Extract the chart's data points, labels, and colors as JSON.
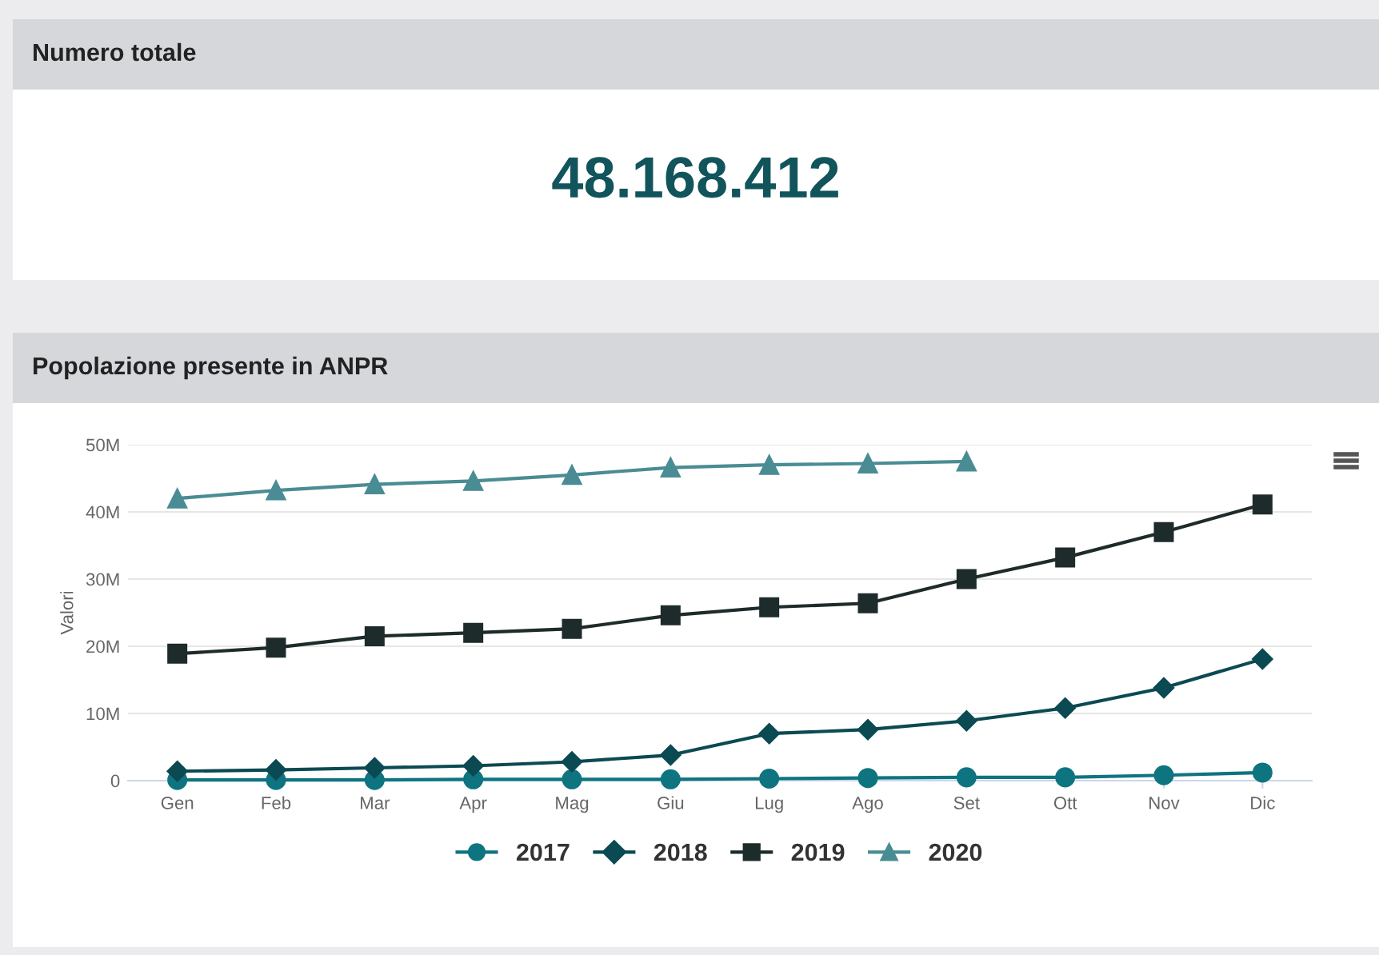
{
  "chart_data": [
    {
      "type": "other",
      "title": "Numero totale",
      "annotations": [
        "48.168.412"
      ]
    },
    {
      "type": "line",
      "title": "Popolazione presente in ANPR",
      "ylabel": "Valori",
      "categories": [
        "Gen",
        "Feb",
        "Mar",
        "Apr",
        "Mag",
        "Giu",
        "Lug",
        "Ago",
        "Set",
        "Ott",
        "Nov",
        "Dic"
      ],
      "ylim": [
        0,
        50
      ],
      "yticks": [
        0,
        {
          "value": 10,
          "label": "10M"
        },
        {
          "value": 20,
          "label": "20M"
        },
        {
          "value": 30,
          "label": "30M"
        },
        {
          "value": 40,
          "label": "40M"
        },
        {
          "value": 50,
          "label": "50M"
        }
      ],
      "grid": "y",
      "legend": "bottom",
      "series": [
        {
          "name": "2017",
          "color": "#0e7480",
          "marker": "circle",
          "values": [
            0.1,
            0.1,
            0.1,
            0.2,
            0.2,
            0.2,
            0.3,
            0.4,
            0.5,
            0.5,
            0.8,
            1.2
          ]
        },
        {
          "name": "2018",
          "color": "#0b4a52",
          "marker": "diamond",
          "values": [
            1.4,
            1.6,
            1.9,
            2.2,
            2.8,
            3.8,
            7.0,
            7.6,
            8.9,
            10.8,
            13.8,
            18.1
          ]
        },
        {
          "name": "2019",
          "color": "#1e2b2b",
          "marker": "square",
          "values": [
            18.9,
            19.8,
            21.5,
            22.0,
            22.6,
            24.6,
            25.8,
            26.4,
            30.0,
            33.2,
            37.0,
            41.1
          ]
        },
        {
          "name": "2020",
          "color": "#4a8c94",
          "marker": "triangle",
          "values": [
            42.0,
            43.2,
            44.1,
            44.6,
            45.5,
            46.6,
            47.0,
            47.2,
            47.5,
            null,
            null,
            null
          ]
        }
      ]
    }
  ]
}
